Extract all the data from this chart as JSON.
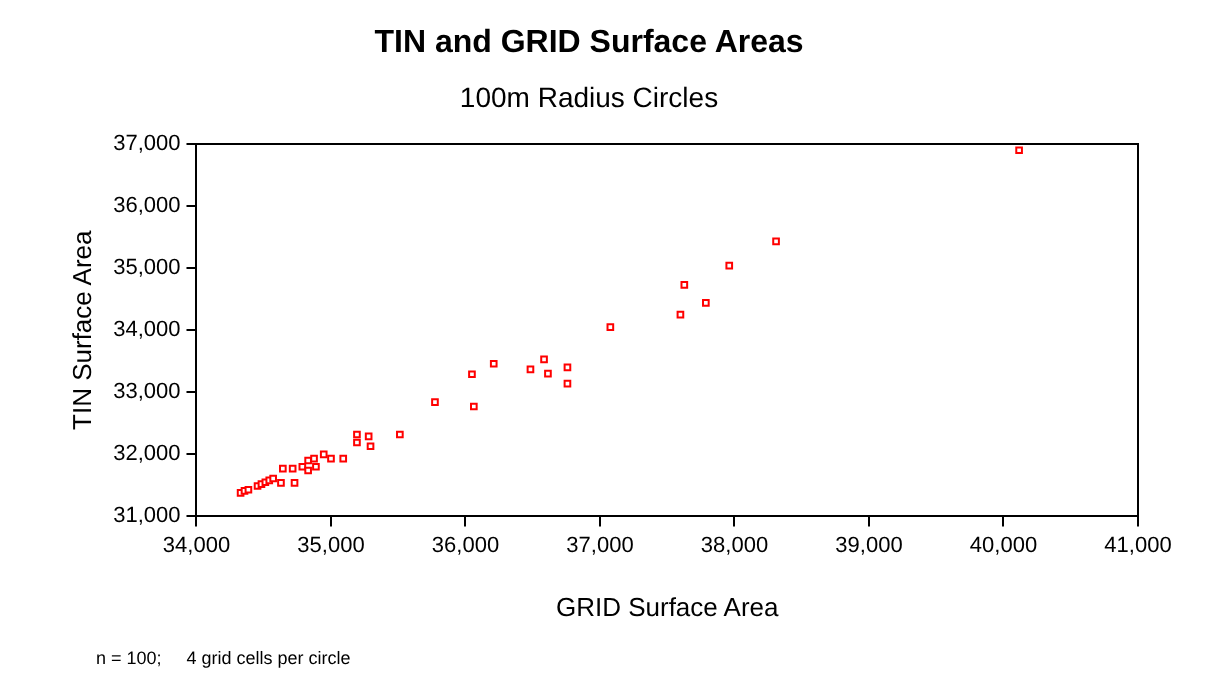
{
  "chart_data": {
    "type": "scatter",
    "title": "TIN and GRID Surface Areas",
    "subtitle": "100m Radius Circles",
    "xlabel": "GRID Surface Area",
    "ylabel": "TIN Surface Area",
    "annotations": [
      "n = 100;     4 grid cells per circle"
    ],
    "xlim": [
      34000,
      41000
    ],
    "xticks": [
      {
        "value": 34000,
        "label": "34,000"
      },
      {
        "value": 35000,
        "label": "35,000"
      },
      {
        "value": 36000,
        "label": "36,000"
      },
      {
        "value": 37000,
        "label": "37,000"
      },
      {
        "value": 38000,
        "label": "38,000"
      },
      {
        "value": 39000,
        "label": "39,000"
      },
      {
        "value": 40000,
        "label": "40,000"
      },
      {
        "value": 41000,
        "label": "41,000"
      }
    ],
    "ylim": [
      31000,
      37000
    ],
    "yticks": [
      {
        "value": 31000,
        "label": "31,000"
      },
      {
        "value": 32000,
        "label": "32,000"
      },
      {
        "value": 33000,
        "label": "33,000"
      },
      {
        "value": 34000,
        "label": "34,000"
      },
      {
        "value": 35000,
        "label": "35,000"
      },
      {
        "value": 36000,
        "label": "36,000"
      },
      {
        "value": 37000,
        "label": "37,000"
      }
    ],
    "grid": false,
    "legend": false,
    "marker": "square",
    "series": [
      {
        "color": "#ff0000",
        "x": [
          40116,
          38309,
          37961,
          37627,
          37787,
          37598,
          37077,
          36483,
          36584,
          36613,
          36758,
          36758,
          36210,
          36048,
          35773,
          36062,
          35512,
          35193,
          35280,
          35193,
          35294,
          35091,
          34946,
          35000,
          34874,
          34888,
          34830,
          34787,
          34830,
          34715,
          34642,
          34729,
          34628,
          34328,
          34357,
          34386,
          34454,
          34483,
          34512,
          34541,
          34570
        ],
        "values": [
          36900,
          35430,
          35040,
          34730,
          34440,
          34250,
          34050,
          33370,
          33530,
          33300,
          33400,
          33140,
          33460,
          33290,
          32840,
          32770,
          32320,
          32320,
          32290,
          32190,
          32130,
          31930,
          32000,
          31930,
          31930,
          31800,
          31900,
          31800,
          31740,
          31770,
          31770,
          31540,
          31540,
          31380,
          31410,
          31430,
          31490,
          31520,
          31550,
          31580,
          31610
        ]
      }
    ]
  }
}
